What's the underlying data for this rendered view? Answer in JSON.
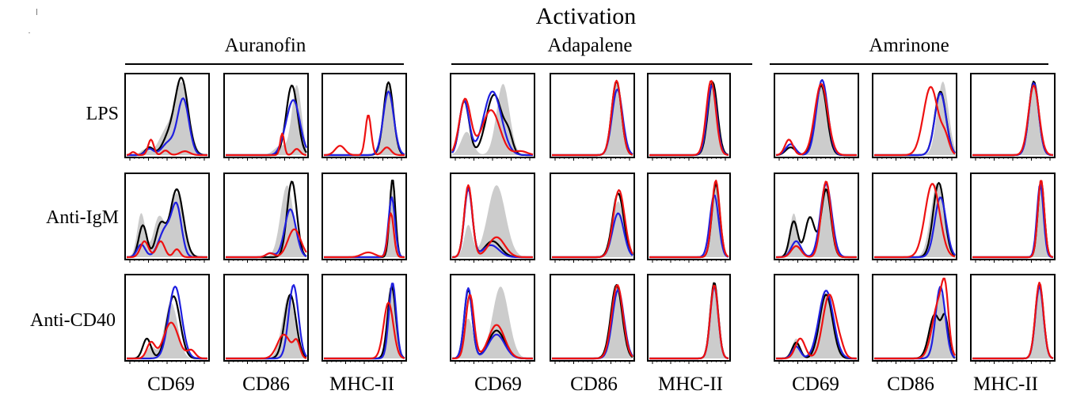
{
  "title": "Activation",
  "drugs": [
    "Auranofin",
    "Adapalene",
    "Amrinone"
  ],
  "conditions": [
    "LPS",
    "Anti-IgM",
    "Anti-CD40"
  ],
  "markers": [
    "CD69",
    "CD86",
    "MHC-II"
  ],
  "chart_data": {
    "type": "histogram-grid",
    "x_scale": "log",
    "x_range": [
      0,
      1
    ],
    "y_range": [
      0,
      1
    ],
    "series_colors": {
      "filled": "#cccccc",
      "black": "#000000",
      "blue": "#1f1fe0",
      "red": "#ee1111"
    },
    "panels": [
      {
        "drug": "Auranofin",
        "condition": "LPS",
        "marker": "CD69",
        "filled": [
          [
            0.22,
            0.07,
            0.05
          ],
          [
            0.48,
            0.28,
            0.09
          ],
          [
            0.68,
            0.92,
            0.09
          ]
        ],
        "black": [
          [
            0.28,
            0.1,
            0.05
          ],
          [
            0.52,
            0.22,
            0.08
          ],
          [
            0.68,
            0.97,
            0.08
          ]
        ],
        "blue": [
          [
            0.28,
            0.08,
            0.05
          ],
          [
            0.52,
            0.16,
            0.08
          ],
          [
            0.7,
            0.72,
            0.07
          ]
        ],
        "red": [
          [
            0.08,
            0.04,
            0.03
          ],
          [
            0.3,
            0.2,
            0.035
          ],
          [
            0.48,
            0.06,
            0.04
          ],
          [
            0.72,
            0.05,
            0.06
          ]
        ]
      },
      {
        "drug": "Auranofin",
        "condition": "LPS",
        "marker": "CD86",
        "filled": [
          [
            0.68,
            0.12,
            0.08
          ],
          [
            0.88,
            0.9,
            0.06
          ]
        ],
        "black": [
          [
            0.82,
            0.9,
            0.07
          ]
        ],
        "blue": [
          [
            0.72,
            0.08,
            0.06
          ],
          [
            0.84,
            0.7,
            0.08
          ]
        ],
        "red": [
          [
            0.7,
            0.28,
            0.025
          ],
          [
            0.88,
            0.08,
            0.04
          ]
        ]
      },
      {
        "drug": "Auranofin",
        "condition": "LPS",
        "marker": "MHC-II",
        "filled": [
          [
            0.8,
            0.9,
            0.06
          ]
        ],
        "black": [
          [
            0.8,
            0.94,
            0.06
          ]
        ],
        "blue": [
          [
            0.8,
            0.82,
            0.065
          ]
        ],
        "red": [
          [
            0.2,
            0.12,
            0.06
          ],
          [
            0.55,
            0.52,
            0.035
          ],
          [
            0.78,
            0.1,
            0.05
          ]
        ]
      },
      {
        "drug": "Adapalene",
        "condition": "LPS",
        "marker": "CD69",
        "filled": [
          [
            0.18,
            0.3,
            0.07
          ],
          [
            0.63,
            0.92,
            0.08
          ]
        ],
        "black": [
          [
            0.15,
            0.7,
            0.06
          ],
          [
            0.52,
            0.78,
            0.1
          ],
          [
            0.7,
            0.2,
            0.05
          ]
        ],
        "blue": [
          [
            0.15,
            0.7,
            0.06
          ],
          [
            0.5,
            0.82,
            0.11
          ]
        ],
        "red": [
          [
            0.16,
            0.72,
            0.07
          ],
          [
            0.48,
            0.58,
            0.11
          ],
          [
            0.85,
            0.05,
            0.08
          ]
        ]
      },
      {
        "drug": "Adapalene",
        "condition": "LPS",
        "marker": "CD86",
        "filled": [
          [
            0.8,
            0.92,
            0.06
          ]
        ],
        "black": [
          [
            0.8,
            0.95,
            0.06
          ]
        ],
        "blue": [
          [
            0.81,
            0.85,
            0.065
          ]
        ],
        "red": [
          [
            0.8,
            0.96,
            0.06
          ]
        ]
      },
      {
        "drug": "Adapalene",
        "condition": "LPS",
        "marker": "MHC-II",
        "filled": [
          [
            0.79,
            0.93,
            0.06
          ]
        ],
        "black": [
          [
            0.8,
            0.94,
            0.06
          ]
        ],
        "blue": [
          [
            0.79,
            0.9,
            0.06
          ]
        ],
        "red": [
          [
            0.78,
            0.96,
            0.06
          ]
        ]
      },
      {
        "drug": "Amrinone",
        "condition": "LPS",
        "marker": "CD69",
        "filled": [
          [
            0.55,
            0.92,
            0.07
          ]
        ],
        "black": [
          [
            0.18,
            0.1,
            0.06
          ],
          [
            0.56,
            0.9,
            0.07
          ]
        ],
        "blue": [
          [
            0.18,
            0.14,
            0.06
          ],
          [
            0.57,
            0.97,
            0.07
          ]
        ],
        "red": [
          [
            0.16,
            0.2,
            0.05
          ],
          [
            0.56,
            0.92,
            0.08
          ]
        ]
      },
      {
        "drug": "Amrinone",
        "condition": "LPS",
        "marker": "CD86",
        "filled": [
          [
            0.85,
            0.95,
            0.07
          ]
        ],
        "black": [
          [
            0.82,
            0.82,
            0.07
          ]
        ],
        "blue": [
          [
            0.82,
            0.8,
            0.07
          ]
        ],
        "red": [
          [
            0.7,
            0.88,
            0.09
          ],
          [
            0.88,
            0.2,
            0.05
          ]
        ]
      },
      {
        "drug": "Amrinone",
        "condition": "LPS",
        "marker": "MHC-II",
        "filled": [
          [
            0.76,
            0.93,
            0.06
          ]
        ],
        "black": [
          [
            0.76,
            0.95,
            0.06
          ]
        ],
        "blue": [
          [
            0.76,
            0.93,
            0.06
          ]
        ],
        "red": [
          [
            0.76,
            0.9,
            0.065
          ]
        ]
      },
      {
        "drug": "Auranofin",
        "condition": "Anti-IgM",
        "marker": "CD69",
        "filled": [
          [
            0.18,
            0.55,
            0.05
          ],
          [
            0.4,
            0.5,
            0.07
          ],
          [
            0.62,
            0.8,
            0.08
          ]
        ],
        "black": [
          [
            0.2,
            0.4,
            0.05
          ],
          [
            0.42,
            0.4,
            0.06
          ],
          [
            0.62,
            0.85,
            0.08
          ]
        ],
        "blue": [
          [
            0.18,
            0.16,
            0.05
          ],
          [
            0.48,
            0.35,
            0.08
          ],
          [
            0.62,
            0.6,
            0.06
          ]
        ],
        "red": [
          [
            0.22,
            0.2,
            0.05
          ],
          [
            0.42,
            0.2,
            0.05
          ],
          [
            0.62,
            0.1,
            0.04
          ]
        ]
      },
      {
        "drug": "Auranofin",
        "condition": "Anti-IgM",
        "marker": "CD86",
        "filled": [
          [
            0.76,
            0.9,
            0.08
          ]
        ],
        "black": [
          [
            0.82,
            0.95,
            0.06
          ]
        ],
        "blue": [
          [
            0.55,
            0.05,
            0.05
          ],
          [
            0.8,
            0.6,
            0.07
          ]
        ],
        "red": [
          [
            0.55,
            0.05,
            0.05
          ],
          [
            0.85,
            0.35,
            0.08
          ]
        ]
      },
      {
        "drug": "Auranofin",
        "condition": "Anti-IgM",
        "marker": "MHC-II",
        "filled": [
          [
            0.84,
            0.95,
            0.04
          ]
        ],
        "black": [
          [
            0.85,
            0.98,
            0.035
          ]
        ],
        "blue": [
          [
            0.84,
            0.75,
            0.04
          ]
        ],
        "red": [
          [
            0.55,
            0.06,
            0.08
          ],
          [
            0.83,
            0.55,
            0.035
          ]
        ]
      },
      {
        "drug": "Adapalene",
        "condition": "Anti-IgM",
        "marker": "CD69",
        "filled": [
          [
            0.2,
            0.4,
            0.05
          ],
          [
            0.55,
            0.9,
            0.11
          ]
        ],
        "black": [
          [
            0.2,
            0.88,
            0.05
          ],
          [
            0.5,
            0.2,
            0.1
          ]
        ],
        "blue": [
          [
            0.2,
            0.85,
            0.05
          ],
          [
            0.48,
            0.15,
            0.1
          ]
        ],
        "red": [
          [
            0.2,
            0.9,
            0.05
          ],
          [
            0.55,
            0.25,
            0.1
          ]
        ]
      },
      {
        "drug": "Adapalene",
        "condition": "Anti-IgM",
        "marker": "CD86",
        "filled": [
          [
            0.82,
            0.7,
            0.07
          ]
        ],
        "black": [
          [
            0.82,
            0.8,
            0.07
          ]
        ],
        "blue": [
          [
            0.82,
            0.55,
            0.07
          ]
        ],
        "red": [
          [
            0.83,
            0.84,
            0.07
          ]
        ]
      },
      {
        "drug": "Adapalene",
        "condition": "Anti-IgM",
        "marker": "MHC-II",
        "filled": [
          [
            0.83,
            0.93,
            0.05
          ]
        ],
        "black": [
          [
            0.84,
            0.92,
            0.05
          ]
        ],
        "blue": [
          [
            0.82,
            0.78,
            0.055
          ]
        ],
        "red": [
          [
            0.84,
            0.96,
            0.05
          ]
        ]
      },
      {
        "drug": "Amrinone",
        "condition": "Anti-IgM",
        "marker": "CD69",
        "filled": [
          [
            0.22,
            0.55,
            0.05
          ],
          [
            0.62,
            0.92,
            0.07
          ]
        ],
        "black": [
          [
            0.22,
            0.45,
            0.05
          ],
          [
            0.42,
            0.5,
            0.06
          ],
          [
            0.62,
            0.85,
            0.06
          ]
        ],
        "blue": [
          [
            0.25,
            0.2,
            0.06
          ],
          [
            0.62,
            0.92,
            0.07
          ]
        ],
        "red": [
          [
            0.25,
            0.14,
            0.06
          ],
          [
            0.62,
            0.95,
            0.06
          ]
        ]
      },
      {
        "drug": "Amrinone",
        "condition": "Anti-IgM",
        "marker": "CD86",
        "filled": [
          [
            0.78,
            0.93,
            0.08
          ]
        ],
        "black": [
          [
            0.8,
            0.93,
            0.07
          ]
        ],
        "blue": [
          [
            0.82,
            0.75,
            0.07
          ]
        ],
        "red": [
          [
            0.72,
            0.92,
            0.09
          ]
        ]
      },
      {
        "drug": "Amrinone",
        "condition": "Anti-IgM",
        "marker": "MHC-II",
        "filled": [
          [
            0.85,
            0.95,
            0.04
          ]
        ],
        "black": [
          [
            0.85,
            0.96,
            0.04
          ]
        ],
        "blue": [
          [
            0.84,
            0.92,
            0.04
          ]
        ],
        "red": [
          [
            0.85,
            0.97,
            0.04
          ]
        ]
      },
      {
        "drug": "Auranofin",
        "condition": "Anti-CD40",
        "marker": "CD69",
        "filled": [
          [
            0.3,
            0.15,
            0.05
          ],
          [
            0.55,
            0.7,
            0.08
          ]
        ],
        "black": [
          [
            0.25,
            0.25,
            0.05
          ],
          [
            0.58,
            0.78,
            0.08
          ]
        ],
        "blue": [
          [
            0.6,
            0.9,
            0.08
          ]
        ],
        "red": [
          [
            0.3,
            0.2,
            0.05
          ],
          [
            0.55,
            0.45,
            0.09
          ],
          [
            0.8,
            0.1,
            0.05
          ]
        ]
      },
      {
        "drug": "Auranofin",
        "condition": "Anti-CD40",
        "marker": "CD86",
        "filled": [
          [
            0.78,
            0.78,
            0.08
          ]
        ],
        "black": [
          [
            0.8,
            0.8,
            0.07
          ]
        ],
        "blue": [
          [
            0.84,
            0.92,
            0.06
          ]
        ],
        "red": [
          [
            0.72,
            0.3,
            0.08
          ],
          [
            0.88,
            0.2,
            0.04
          ]
        ]
      },
      {
        "drug": "Auranofin",
        "condition": "Anti-CD40",
        "marker": "MHC-II",
        "filled": [
          [
            0.83,
            0.88,
            0.05
          ]
        ],
        "black": [
          [
            0.84,
            0.9,
            0.05
          ]
        ],
        "blue": [
          [
            0.85,
            0.95,
            0.045
          ]
        ],
        "red": [
          [
            0.8,
            0.7,
            0.06
          ]
        ]
      },
      {
        "drug": "Adapalene",
        "condition": "Anti-CD40",
        "marker": "CD69",
        "filled": [
          [
            0.2,
            0.5,
            0.06
          ],
          [
            0.6,
            0.9,
            0.1
          ]
        ],
        "black": [
          [
            0.2,
            0.86,
            0.05
          ],
          [
            0.55,
            0.35,
            0.1
          ]
        ],
        "blue": [
          [
            0.2,
            0.88,
            0.05
          ],
          [
            0.55,
            0.3,
            0.1
          ]
        ],
        "red": [
          [
            0.22,
            0.8,
            0.05
          ],
          [
            0.55,
            0.42,
            0.1
          ]
        ]
      },
      {
        "drug": "Adapalene",
        "condition": "Anti-CD40",
        "marker": "CD86",
        "filled": [
          [
            0.8,
            0.9,
            0.07
          ]
        ],
        "black": [
          [
            0.8,
            0.92,
            0.07
          ]
        ],
        "blue": [
          [
            0.82,
            0.86,
            0.07
          ]
        ],
        "red": [
          [
            0.81,
            0.92,
            0.07
          ]
        ]
      },
      {
        "drug": "Adapalene",
        "condition": "Anti-CD40",
        "marker": "MHC-II",
        "filled": [
          [
            0.82,
            0.93,
            0.05
          ]
        ],
        "black": [
          [
            0.82,
            0.95,
            0.05
          ]
        ],
        "blue": [
          [
            0.82,
            0.9,
            0.05
          ]
        ],
        "red": [
          [
            0.82,
            0.92,
            0.05
          ]
        ]
      },
      {
        "drug": "Amrinone",
        "condition": "Anti-CD40",
        "marker": "CD69",
        "filled": [
          [
            0.25,
            0.25,
            0.05
          ],
          [
            0.62,
            0.82,
            0.08
          ]
        ],
        "black": [
          [
            0.25,
            0.2,
            0.05
          ],
          [
            0.62,
            0.8,
            0.08
          ]
        ],
        "blue": [
          [
            0.25,
            0.15,
            0.05
          ],
          [
            0.62,
            0.85,
            0.09
          ]
        ],
        "red": [
          [
            0.3,
            0.25,
            0.06
          ],
          [
            0.66,
            0.8,
            0.08
          ],
          [
            0.8,
            0.1,
            0.05
          ]
        ]
      },
      {
        "drug": "Amrinone",
        "condition": "Anti-CD40",
        "marker": "CD86",
        "filled": [
          [
            0.82,
            0.82,
            0.08
          ]
        ],
        "black": [
          [
            0.75,
            0.55,
            0.07
          ],
          [
            0.88,
            0.45,
            0.04
          ]
        ],
        "blue": [
          [
            0.82,
            0.9,
            0.06
          ]
        ],
        "red": [
          [
            0.8,
            0.7,
            0.08
          ],
          [
            0.88,
            0.55,
            0.04
          ]
        ]
      },
      {
        "drug": "Amrinone",
        "condition": "Anti-CD40",
        "marker": "MHC-II",
        "filled": [
          [
            0.83,
            0.92,
            0.05
          ]
        ],
        "black": [
          [
            0.83,
            0.93,
            0.05
          ]
        ],
        "blue": [
          [
            0.83,
            0.9,
            0.05
          ]
        ],
        "red": [
          [
            0.83,
            0.95,
            0.05
          ]
        ]
      }
    ]
  }
}
